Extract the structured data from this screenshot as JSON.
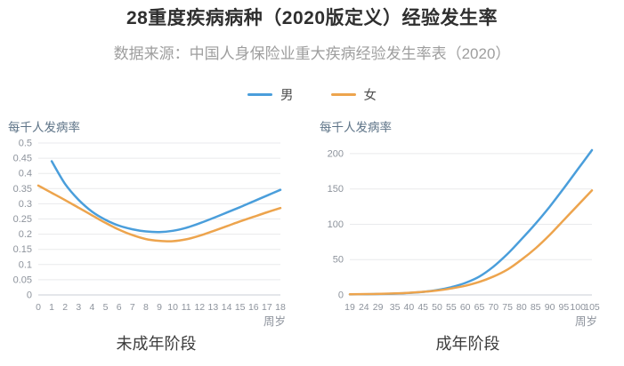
{
  "header": {
    "title": "28重度疾病病种（2020版定义）经验发生率",
    "subtitle": "数据来源：中国人身保险业重大疾病经验发生率表（2020）"
  },
  "legend": {
    "items": [
      {
        "label": "男",
        "color": "#4a9edb"
      },
      {
        "label": "女",
        "color": "#eda44d"
      }
    ]
  },
  "chart_data": [
    {
      "type": "line",
      "title": "未成年阶段",
      "ylabel": "每千人发病率",
      "xlabel": "周岁",
      "xlim": [
        0,
        18
      ],
      "ylim": [
        0,
        0.5
      ],
      "yticks": [
        0,
        0.05,
        0.1,
        0.15,
        0.2,
        0.25,
        0.3,
        0.35,
        0.4,
        0.45,
        0.5
      ],
      "xticks": [
        0,
        1,
        2,
        3,
        4,
        5,
        6,
        7,
        8,
        9,
        10,
        11,
        12,
        13,
        14,
        15,
        16,
        17,
        18
      ],
      "grid": true,
      "legend_position": "top",
      "series": [
        {
          "name": "男",
          "color": "#4a9edb",
          "x": [
            1,
            2,
            3,
            4,
            5,
            6,
            7,
            8,
            9,
            10,
            11,
            12,
            13,
            14,
            15,
            16,
            17,
            18
          ],
          "values": [
            0.44,
            0.365,
            0.313,
            0.274,
            0.247,
            0.228,
            0.216,
            0.209,
            0.207,
            0.211,
            0.221,
            0.236,
            0.253,
            0.271,
            0.289,
            0.308,
            0.327,
            0.346
          ]
        },
        {
          "name": "女",
          "color": "#eda44d",
          "x": [
            0,
            1,
            2,
            3,
            4,
            5,
            6,
            7,
            8,
            9,
            10,
            11,
            12,
            13,
            14,
            15,
            16,
            17,
            18
          ],
          "values": [
            0.36,
            0.336,
            0.312,
            0.287,
            0.262,
            0.237,
            0.215,
            0.197,
            0.184,
            0.178,
            0.177,
            0.183,
            0.195,
            0.21,
            0.226,
            0.242,
            0.257,
            0.272,
            0.286
          ]
        }
      ]
    },
    {
      "type": "line",
      "title": "成年阶段",
      "ylabel": "每千人发病率",
      "xlabel": "周岁",
      "xlim": [
        19,
        105
      ],
      "ylim": [
        0,
        215
      ],
      "yticks": [
        0,
        50,
        100,
        150,
        200
      ],
      "xticks": [
        19,
        24,
        29,
        35,
        40,
        45,
        50,
        55,
        60,
        65,
        70,
        75,
        80,
        85,
        90,
        95,
        100,
        105
      ],
      "grid": true,
      "legend_position": "top",
      "series": [
        {
          "name": "男",
          "color": "#4a9edb",
          "x": [
            19,
            25,
            30,
            35,
            40,
            45,
            50,
            55,
            60,
            65,
            70,
            75,
            80,
            85,
            90,
            95,
            100,
            105
          ],
          "values": [
            0.8,
            1.0,
            1.4,
            1.9,
            2.8,
            4.3,
            6.9,
            11,
            17,
            26,
            40,
            58,
            79,
            101,
            125,
            151,
            178,
            205
          ]
        },
        {
          "name": "女",
          "color": "#eda44d",
          "x": [
            19,
            25,
            30,
            35,
            40,
            45,
            50,
            55,
            60,
            65,
            70,
            75,
            80,
            85,
            90,
            95,
            100,
            105
          ],
          "values": [
            0.9,
            1.2,
            1.6,
            2.1,
            3.0,
            4.4,
            6.3,
            9.2,
            13,
            18.5,
            26,
            36,
            50,
            66,
            85,
            106,
            127,
            148
          ]
        }
      ]
    }
  ]
}
